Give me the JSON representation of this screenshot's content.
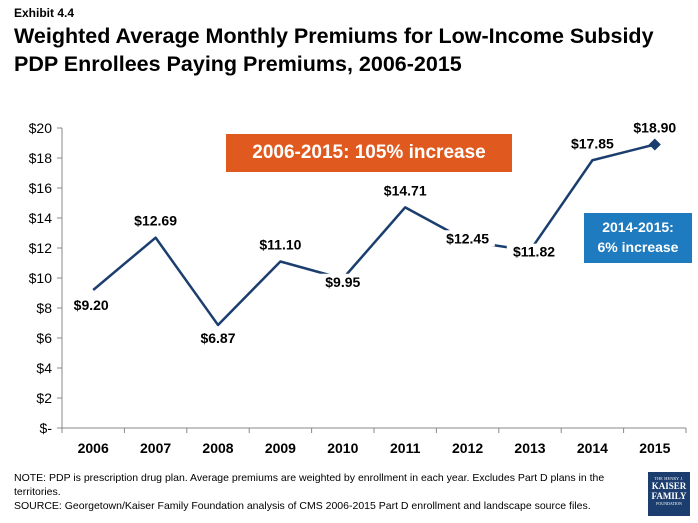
{
  "header": {
    "exhibit": "Exhibit 4.4",
    "title": "Weighted Average Monthly Premiums for Low-Income Subsidy PDP Enrollees Paying Premiums, 2006-2015"
  },
  "chart_data": {
    "type": "line",
    "x": [
      "2006",
      "2007",
      "2008",
      "2009",
      "2010",
      "2011",
      "2012",
      "2013",
      "2014",
      "2015"
    ],
    "values": [
      9.2,
      12.69,
      6.87,
      11.1,
      9.95,
      14.71,
      12.45,
      11.82,
      17.85,
      18.9
    ],
    "data_labels": [
      "$9.20",
      "$12.69",
      "$6.87",
      "$11.10",
      "$9.95",
      "$14.71",
      "$12.45",
      "$11.82",
      "$17.85",
      "$18.90"
    ],
    "y_ticks": [
      0,
      2,
      4,
      6,
      8,
      10,
      12,
      14,
      16,
      18,
      20
    ],
    "y_tick_labels": [
      "$-",
      "$2",
      "$4",
      "$6",
      "$8",
      "$10",
      "$12",
      "$14",
      "$16",
      "$18",
      "$20"
    ],
    "ylim": [
      0,
      20
    ],
    "grid": false,
    "line_color": "#1b3e6e",
    "annotations": {
      "main": "2006-2015: 105% increase",
      "side_line1": "2014-2015:",
      "side_line2": "6% increase",
      "main_color": "#e05a1f",
      "side_color": "#1f7bbf"
    }
  },
  "footer": {
    "note": "NOTE: PDP is prescription drug plan. Average premiums are weighted by enrollment in each year.  Excludes Part D plans in the territories.",
    "source": "SOURCE: Georgetown/Kaiser Family Foundation analysis of CMS 2006-2015 Part D enrollment and landscape source files."
  },
  "logo": {
    "line1": "THE HENRY J.",
    "line2": "KAISER",
    "line3": "FAMILY",
    "line4": "FOUNDATION"
  }
}
